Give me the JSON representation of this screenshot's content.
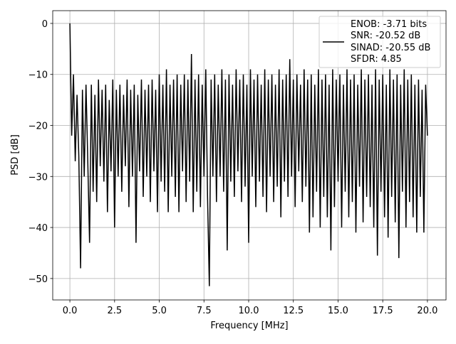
{
  "chart_data": {
    "type": "line",
    "title": "",
    "xlabel": "Frequency [MHz]",
    "ylabel": "PSD [dB]",
    "xlim": [
      -0.96,
      21.04
    ],
    "ylim": [
      -54.2,
      2.5
    ],
    "grid": true,
    "xticks": [
      0.0,
      2.5,
      5.0,
      7.5,
      10.0,
      12.5,
      15.0,
      17.5,
      20.0
    ],
    "xtick_labels": [
      "0.0",
      "2.5",
      "5.0",
      "7.5",
      "10.0",
      "12.5",
      "15.0",
      "17.5",
      "20.0"
    ],
    "yticks": [
      0,
      -10,
      -20,
      -30,
      -40,
      -50
    ],
    "ytick_labels": [
      "0",
      "−10",
      "−20",
      "−30",
      "−40",
      "−50"
    ],
    "legend": {
      "placement": "top-right",
      "entries": [
        "ENOB: -3.71 bits",
        "SNR: -20.52 dB",
        "SINAD: -20.55 dB",
        "SFDR: 4.85"
      ]
    },
    "series": [
      {
        "name": "PSD",
        "color": "#000000",
        "x_start": 0.0,
        "x_step": 0.1,
        "values": [
          0,
          -22,
          -10,
          -27,
          -14,
          -26,
          -48,
          -13,
          -30,
          -12,
          -27,
          -43,
          -12,
          -33,
          -14,
          -35,
          -11,
          -28,
          -13,
          -31,
          -12,
          -37,
          -15,
          -29,
          -11,
          -40,
          -13,
          -30,
          -12,
          -33,
          -14,
          -28,
          -11,
          -36,
          -13,
          -30,
          -12,
          -43,
          -14,
          -29,
          -11,
          -34,
          -13,
          -30,
          -12,
          -35,
          -11,
          -29,
          -13,
          -37,
          -10,
          -31,
          -12,
          -33,
          -9,
          -37,
          -12,
          -30,
          -11,
          -34,
          -10,
          -37,
          -12,
          -29,
          -10,
          -35,
          -11,
          -31,
          -6,
          -37,
          -11,
          -33,
          -10,
          -36,
          -12,
          -30,
          -9,
          -34,
          -51.5,
          -11,
          -30,
          -10,
          -35,
          -12,
          -30,
          -9,
          -33,
          -11,
          -44.5,
          -10,
          -31,
          -12,
          -34,
          -9,
          -29,
          -11,
          -35,
          -10,
          -32,
          -12,
          -43,
          -9,
          -30,
          -11,
          -36,
          -10,
          -31,
          -12,
          -34,
          -9,
          -37,
          -11,
          -30,
          -10,
          -35,
          -12,
          -32,
          -9,
          -38,
          -11,
          -31,
          -10,
          -34,
          -7,
          -30,
          -11,
          -36,
          -10,
          -29,
          -12,
          -35,
          -9,
          -32,
          -11,
          -41,
          -10,
          -38,
          -12,
          -33,
          -9,
          -40,
          -11,
          -34,
          -10,
          -38,
          -12,
          -44.5,
          -9,
          -36,
          -11,
          -31,
          -10,
          -40,
          -12,
          -33,
          -9,
          -38,
          -11,
          -35,
          -10,
          -41,
          -12,
          -32,
          -9,
          -39,
          -11,
          -34,
          -10,
          -36,
          -12,
          -40,
          -9,
          -45.5,
          -11,
          -33,
          -10,
          -38,
          -12,
          -42,
          -9,
          -34,
          -11,
          -39,
          -10,
          -46,
          -12,
          -33,
          -9,
          -40,
          -11,
          -35,
          -10,
          -38,
          -12,
          -41,
          -11,
          -34,
          -13,
          -41,
          -12,
          -22
        ]
      }
    ]
  }
}
